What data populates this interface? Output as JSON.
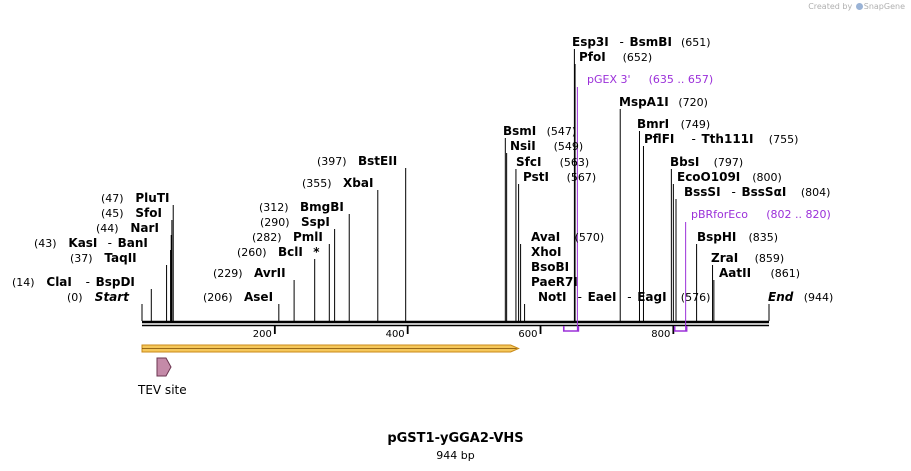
{
  "credit": {
    "prefix": "Created by",
    "brand": "SnapGene"
  },
  "title": "pGST1-yGGA2-VHS",
  "subtitle": "944 bp",
  "colors": {
    "line": "#000000",
    "primer": "#9b30d9",
    "feature_fill": "#f5c75a",
    "feature_stroke": "#c98a18",
    "tev_fill": "#c48aa8"
  },
  "sequence_length": 944,
  "ruler_ticks": [
    200,
    400,
    600,
    800
  ],
  "enzymes": [
    {
      "name": "ClaI",
      "extra": "BspDI",
      "pos": 14,
      "label": "(14)"
    },
    {
      "name": "Start",
      "pos": 0,
      "label": "(0)",
      "italic": true
    },
    {
      "name": "PluTI",
      "pos": 47,
      "label": "(47)"
    },
    {
      "name": "SfoI",
      "pos": 45,
      "label": "(45)"
    },
    {
      "name": "NarI",
      "pos": 44,
      "label": "(44)"
    },
    {
      "name": "KasI",
      "extra": "BanI",
      "pos": 43,
      "label": "(43)"
    },
    {
      "name": "TaqII",
      "pos": 37,
      "label": "(37)"
    },
    {
      "name": "AseI",
      "pos": 206,
      "label": "(206)"
    },
    {
      "name": "AvrII",
      "pos": 229,
      "label": "(229)"
    },
    {
      "name": "BclI",
      "pos": 260,
      "label": "(260)",
      "star": true
    },
    {
      "name": "PmlI",
      "pos": 282,
      "label": "(282)"
    },
    {
      "name": "SspI",
      "pos": 290,
      "label": "(290)"
    },
    {
      "name": "BmgBI",
      "pos": 312,
      "label": "(312)"
    },
    {
      "name": "XbaI",
      "pos": 355,
      "label": "(355)"
    },
    {
      "name": "BstEII",
      "pos": 397,
      "label": "(397)"
    },
    {
      "name": "BsmI",
      "pos": 547,
      "label": "(547)"
    },
    {
      "name": "NsiI",
      "pos": 549,
      "label": "(549)"
    },
    {
      "name": "SfcI",
      "pos": 563,
      "label": "(563)"
    },
    {
      "name": "PstI",
      "pos": 567,
      "label": "(567)"
    },
    {
      "name": "AvaI",
      "pos": 570,
      "label": "(570)"
    },
    {
      "name": "XhoI",
      "pos": 570,
      "label": ""
    },
    {
      "name": "BsoBI",
      "pos": 570,
      "label": ""
    },
    {
      "name": "PaeR7I",
      "pos": 570,
      "label": ""
    },
    {
      "name": "NotI",
      "extra": "EaeI",
      "extra2": "EagI",
      "pos": 576,
      "label": "(576)"
    },
    {
      "name": "Esp3I",
      "extra": "BsmBI",
      "pos": 651,
      "label": "(651)"
    },
    {
      "name": "PfoI",
      "pos": 652,
      "label": "(652)"
    },
    {
      "name": "MspA1I",
      "pos": 720,
      "label": "(720)"
    },
    {
      "name": "BmrI",
      "pos": 749,
      "label": "(749)"
    },
    {
      "name": "PflFI",
      "extra": "Tth111I",
      "pos": 755,
      "label": "(755)"
    },
    {
      "name": "BbsI",
      "pos": 797,
      "label": "(797)"
    },
    {
      "name": "EcoO109I",
      "pos": 800,
      "label": "(800)"
    },
    {
      "name": "BssSI",
      "extra": "BssSαI",
      "pos": 804,
      "label": "(804)"
    },
    {
      "name": "BspHI",
      "pos": 835,
      "label": "(835)"
    },
    {
      "name": "ZraI",
      "pos": 859,
      "label": "(859)"
    },
    {
      "name": "AatII",
      "pos": 861,
      "label": "(861)"
    },
    {
      "name": "End",
      "pos": 944,
      "label": "(944)",
      "italic": true
    }
  ],
  "primers": [
    {
      "name": "pGEX 3'",
      "range": "(635 .. 657)",
      "start": 635,
      "end": 657
    },
    {
      "name": "pBRforEco",
      "range": "(802 .. 820)",
      "start": 802,
      "end": 820
    }
  ],
  "features": [
    {
      "name": "",
      "start": 0,
      "end": 555,
      "type": "orf"
    },
    {
      "name": "TEV site",
      "type": "tev"
    }
  ]
}
